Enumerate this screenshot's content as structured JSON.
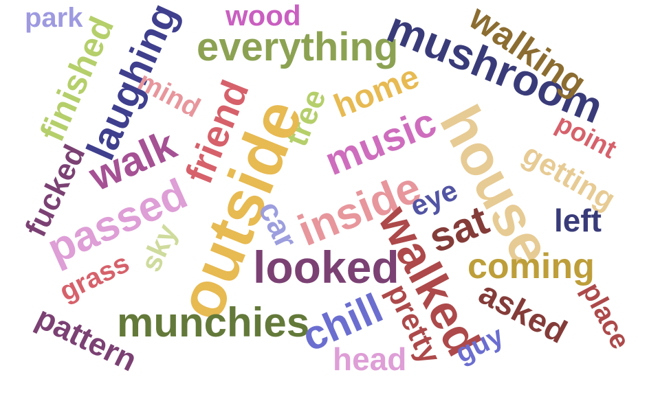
{
  "words": [
    {
      "text": "park",
      "color": "#9e9ae0"
    },
    {
      "text": "wood",
      "color": "#c95fc0"
    },
    {
      "text": "everything",
      "color": "#8ca252"
    },
    {
      "text": "mushroom",
      "color": "#393b79"
    },
    {
      "text": "walking",
      "color": "#8c6d31"
    },
    {
      "text": "finished",
      "color": "#b5cf6b"
    },
    {
      "text": "laughing",
      "color": "#3f3f8e"
    },
    {
      "text": "mind",
      "color": "#e7969c"
    },
    {
      "text": "friend",
      "color": "#d6616b"
    },
    {
      "text": "tree",
      "color": "#b5cf6b"
    },
    {
      "text": "home",
      "color": "#e7ba52"
    },
    {
      "text": "house",
      "color": "#e7cb94"
    },
    {
      "text": "point",
      "color": "#d6616b"
    },
    {
      "text": "walk",
      "color": "#a55194"
    },
    {
      "text": "outside",
      "color": "#e7ba52"
    },
    {
      "text": "music",
      "color": "#ce6dbd"
    },
    {
      "text": "getting",
      "color": "#e7cb94"
    },
    {
      "text": "fucked",
      "color": "#7b4173"
    },
    {
      "text": "passed",
      "color": "#de9ed6"
    },
    {
      "text": "car",
      "color": "#9c9ede"
    },
    {
      "text": "inside",
      "color": "#e7969c"
    },
    {
      "text": "eye",
      "color": "#5254a3"
    },
    {
      "text": "sat",
      "color": "#843c39"
    },
    {
      "text": "left",
      "color": "#393b79"
    },
    {
      "text": "sky",
      "color": "#cedb9c"
    },
    {
      "text": "grass",
      "color": "#d6616b"
    },
    {
      "text": "looked",
      "color": "#7b4173"
    },
    {
      "text": "walked",
      "color": "#ad494a"
    },
    {
      "text": "coming",
      "color": "#bd9e39"
    },
    {
      "text": "asked",
      "color": "#843c39"
    },
    {
      "text": "place",
      "color": "#ad494a"
    },
    {
      "text": "pattern",
      "color": "#7b4173"
    },
    {
      "text": "munchies",
      "color": "#637939"
    },
    {
      "text": "chill",
      "color": "#6b6ecf"
    },
    {
      "text": "pretty",
      "color": "#ad494a"
    },
    {
      "text": "guy",
      "color": "#6b6ecf"
    },
    {
      "text": "head",
      "color": "#de9ed6"
    }
  ]
}
